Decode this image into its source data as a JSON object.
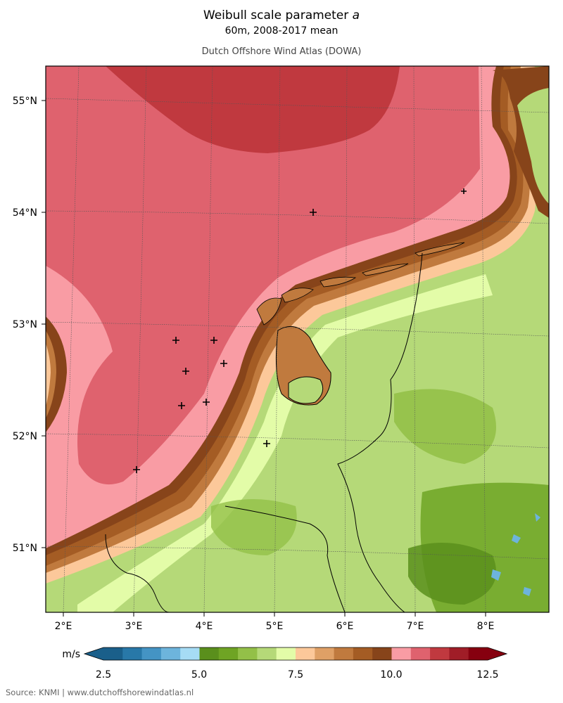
{
  "header": {
    "title_main": "Weibull scale parameter ",
    "title_var": "a",
    "subtitle": "60m, 2008-2017 mean",
    "credit": "Dutch Offshore Wind Atlas (DOWA)"
  },
  "axes": {
    "lat_labels": [
      "55°N",
      "54°N",
      "53°N",
      "52°N",
      "51°N"
    ],
    "lon_labels": [
      "2°E",
      "3°E",
      "4°E",
      "5°E",
      "6°E",
      "7°E",
      "8°E"
    ]
  },
  "colorbar": {
    "unit": "m/s",
    "tick_labels": [
      "2.5",
      "5.0",
      "7.5",
      "10.0",
      "12.5"
    ],
    "colors": [
      "#1a5f8a",
      "#2878a8",
      "#4494c4",
      "#6db4dc",
      "#a6dcf5",
      "#5a8f1c",
      "#6fa424",
      "#93c048",
      "#b5d978",
      "#e3fca8",
      "#fcc89a",
      "#dfa066",
      "#c07a3e",
      "#a45c24",
      "#87441a",
      "#f99ca4",
      "#df626e",
      "#c0393f",
      "#a01d27",
      "#86000f"
    ]
  },
  "footer": {
    "source": "Source: KNMI | www.dutchoffshorewindatlas.nl"
  }
}
